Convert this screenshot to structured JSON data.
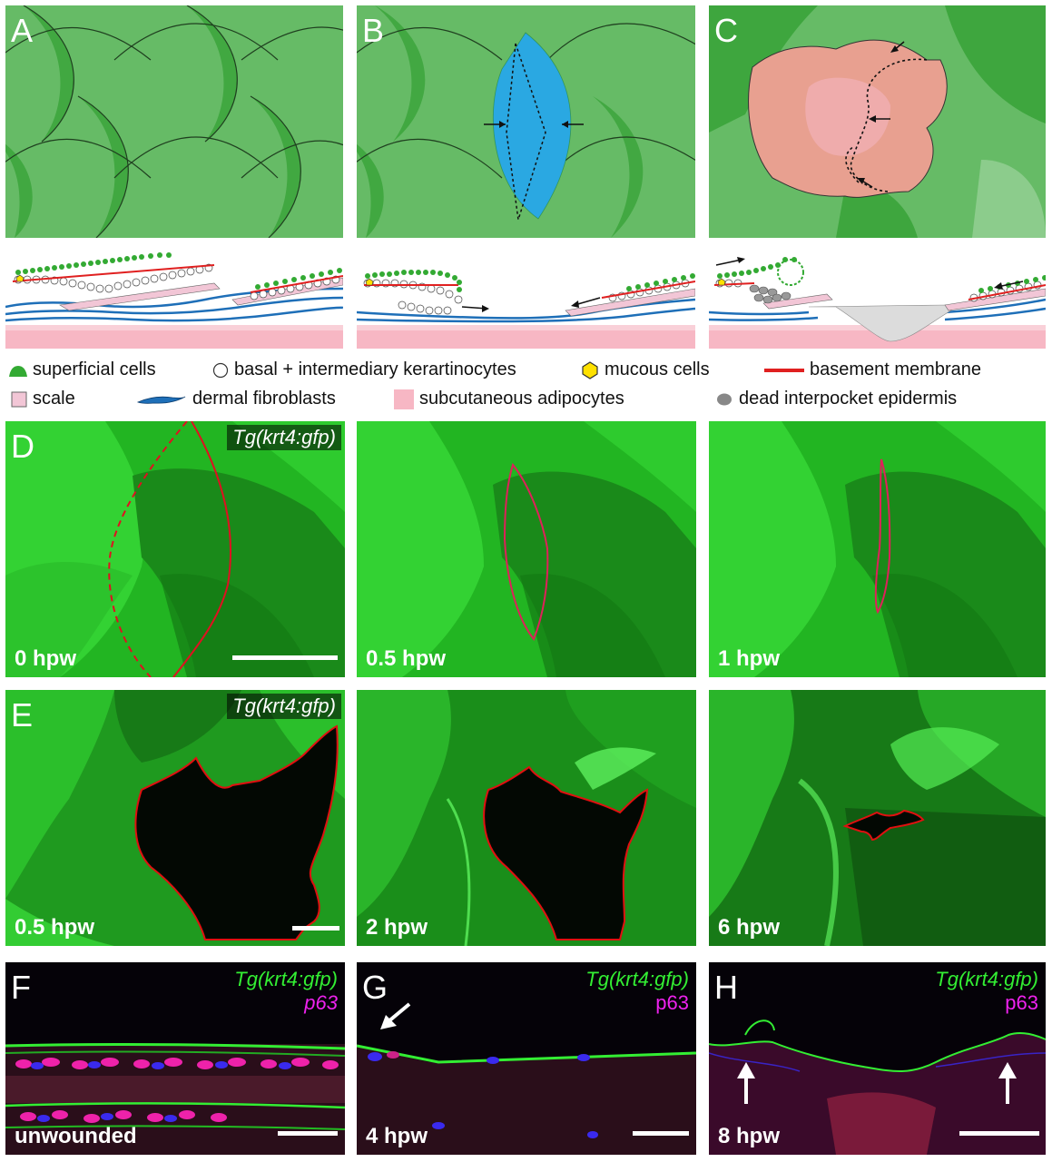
{
  "panels": {
    "A": "A",
    "B": "B",
    "C": "C",
    "D": "D",
    "E": "E",
    "F": "F",
    "G": "G",
    "H": "H"
  },
  "legend": {
    "superficial": "superficial cells",
    "basal": "basal + intermediary kerartinocytes",
    "mucous": "mucous cells",
    "basement": "basement membrane",
    "scale": "scale",
    "fibroblasts": "dermal fibroblasts",
    "adipocytes": "subcutaneous adipocytes",
    "dead": "dead interpocket epidermis"
  },
  "row_d": {
    "tg": "Tg(krt4:gfp)",
    "times": [
      "0 hpw",
      "0.5 hpw",
      "1 hpw"
    ]
  },
  "row_e": {
    "tg": "Tg(krt4:gfp)",
    "times": [
      "0.5 hpw",
      "2 hpw",
      "6 hpw"
    ]
  },
  "row_fgh": {
    "tg": "Tg(krt4:gfp)",
    "p63": "p63",
    "times": [
      "unwounded",
      "4 hpw",
      "8 hpw"
    ]
  },
  "colors": {
    "scale_green": "#5cb85c",
    "wound_blue": "#29a9e0",
    "wound_pink": "#e8a090",
    "outline_red": "#e01010",
    "gfp_green": "#22cc22",
    "p63_magenta": "#ee22ee"
  }
}
